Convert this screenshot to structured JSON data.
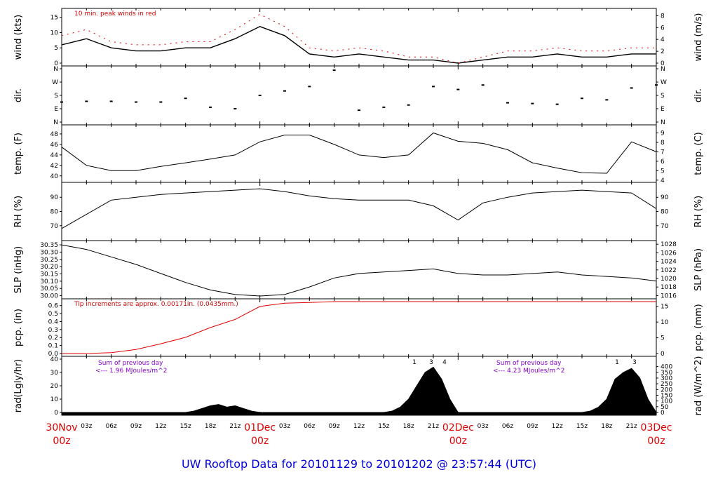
{
  "title": "UW Rooftop Data for 20101129  to  20101202 @ 23:57:44  (UTC)",
  "x_axis": {
    "hour_ticks": [
      "03z",
      "06z",
      "09z",
      "12z",
      "15z",
      "18z",
      "21z",
      "03z",
      "06z",
      "09z",
      "12z",
      "15z",
      "18z",
      "21z",
      "03z",
      "06z",
      "09z",
      "12z",
      "15z",
      "18z",
      "21z"
    ],
    "day_labels": [
      {
        "top": "30Nov",
        "bottom": "00z"
      },
      {
        "top": "01Dec",
        "bottom": "00z"
      },
      {
        "top": "02Dec",
        "bottom": "00z"
      },
      {
        "top": "03Dec",
        "bottom": "00z"
      }
    ]
  },
  "panels": {
    "wind": {
      "ylabel_left": "wind (kts)",
      "ylabel_right": "wind (m/s)",
      "left_ticks": [
        "0",
        "5",
        "10",
        "15"
      ],
      "right_ticks": [
        "0",
        "2",
        "4",
        "6",
        "8"
      ],
      "note": "10 min. peak winds in red"
    },
    "dir": {
      "ylabel_left": "dir.",
      "ylabel_right": "dir.",
      "ticks": [
        "N",
        "E",
        "S",
        "W",
        "N"
      ]
    },
    "temp": {
      "ylabel_left": "temp. (F)",
      "ylabel_right": "temp. (C)",
      "left_ticks": [
        "40",
        "42",
        "44",
        "46",
        "48"
      ],
      "right_ticks": [
        "4",
        "5",
        "6",
        "7",
        "8",
        "9"
      ]
    },
    "rh": {
      "ylabel_left": "RH (%)",
      "ylabel_right": "RH (%)",
      "left_ticks": [
        "70",
        "80",
        "90"
      ],
      "right_ticks": [
        "70",
        "80",
        "90"
      ]
    },
    "slp": {
      "ylabel_left": "SLP (inHg)",
      "ylabel_right": "SLP (hPa)",
      "left_ticks": [
        "30.00",
        "30.05",
        "30.10",
        "30.15",
        "30.20",
        "30.25",
        "30.30",
        "30.35"
      ],
      "right_ticks": [
        "1016",
        "1018",
        "1020",
        "1022",
        "1024",
        "1026",
        "1028"
      ]
    },
    "pcp": {
      "ylabel_left": "pcp. (in)",
      "ylabel_right": "pcp. (mm)",
      "left_ticks": [
        "0.0",
        "0.1",
        "0.2",
        "0.3",
        "0.4",
        "0.5",
        "0.6"
      ],
      "right_ticks": [
        "0",
        "5",
        "10",
        "15"
      ],
      "note": "Tip increments are approx. 0.00171in. (0.0435mm.)"
    },
    "rad": {
      "ylabel_left": "rad(Lgly/hr)",
      "ylabel_right": "rad (W/m^2)",
      "left_ticks": [
        "0",
        "10",
        "20",
        "30",
        "40"
      ],
      "right_ticks": [
        "0",
        "50",
        "100",
        "150",
        "200",
        "250",
        "300",
        "350",
        "400"
      ],
      "sum1": {
        "line1": "Sum of previous day",
        "line2": "<--- 1.96 MJoules/m^2"
      },
      "sum2": {
        "line1": "Sum of previous day",
        "line2": "<--- 4.23 MJoules/m^2"
      },
      "markers1": [
        "1",
        "3",
        "4"
      ],
      "markers2": [
        "1",
        "3"
      ]
    }
  },
  "chart_data": [
    {
      "type": "line",
      "title": "",
      "ylabel": "wind (kts)",
      "ylim": [
        0,
        17
      ],
      "series": [
        {
          "name": "",
          "color": "#000000",
          "x": [
            0,
            3,
            6,
            9,
            12,
            15,
            18,
            21,
            24,
            27,
            30,
            33,
            36,
            39,
            42,
            45,
            48,
            51,
            54,
            57,
            60,
            63,
            66,
            69,
            72
          ],
          "values": [
            6,
            8,
            5,
            4,
            4,
            5,
            5,
            8,
            12,
            9,
            3,
            2,
            3,
            2,
            1,
            1,
            0,
            1,
            2,
            2,
            3,
            2,
            2,
            3,
            3
          ]
        },
        {
          "name": "10 min. peak winds",
          "color": "#dd0000",
          "x": [
            0,
            3,
            6,
            9,
            12,
            15,
            18,
            21,
            24,
            27,
            30,
            33,
            36,
            39,
            42,
            45,
            48,
            51,
            54,
            57,
            60,
            63,
            66,
            69,
            72
          ],
          "values": [
            9,
            11,
            7,
            6,
            6,
            7,
            7,
            11,
            16,
            12,
            5,
            4,
            5,
            4,
            2,
            2,
            0,
            2,
            4,
            4,
            5,
            4,
            4,
            5,
            5
          ]
        }
      ]
    },
    {
      "type": "scatter",
      "title": "",
      "ylabel": "dir.",
      "ylim": [
        0,
        360
      ],
      "series": [
        {
          "name": "",
          "x": [
            0,
            3,
            6,
            9,
            12,
            15,
            18,
            21,
            24,
            27,
            30,
            33,
            36,
            39,
            42,
            45,
            48,
            51,
            54,
            57,
            60,
            63,
            66,
            69,
            72
          ],
          "values": [
            135,
            140,
            140,
            135,
            135,
            160,
            100,
            90,
            180,
            210,
            240,
            350,
            80,
            100,
            115,
            240,
            220,
            250,
            130,
            125,
            120,
            160,
            150,
            230,
            250
          ]
        }
      ]
    },
    {
      "type": "line",
      "title": "",
      "ylabel": "temp. (F)",
      "ylim": [
        39.3,
        49.2
      ],
      "series": [
        {
          "name": "",
          "x": [
            0,
            3,
            6,
            9,
            12,
            15,
            18,
            21,
            24,
            27,
            30,
            33,
            36,
            39,
            42,
            45,
            48,
            51,
            54,
            57,
            60,
            63,
            66,
            69,
            72
          ],
          "values": [
            45.5,
            42,
            41,
            41,
            41.8,
            42.5,
            43.2,
            44,
            46.5,
            47.8,
            47.8,
            46,
            44,
            43.5,
            44,
            48.2,
            46.6,
            46.2,
            45,
            42.5,
            41.5,
            40.6,
            40.5,
            46.5,
            44.6
          ]
        }
      ]
    },
    {
      "type": "line",
      "title": "",
      "ylabel": "RH (%)",
      "ylim": [
        61.5,
        98.5
      ],
      "series": [
        {
          "name": "",
          "x": [
            0,
            3,
            6,
            9,
            12,
            15,
            18,
            21,
            24,
            27,
            30,
            33,
            36,
            39,
            42,
            45,
            48,
            51,
            54,
            57,
            60,
            63,
            66,
            69,
            72
          ],
          "values": [
            68,
            78,
            88,
            90,
            92,
            93,
            94,
            95,
            96,
            94,
            91,
            89,
            88,
            88,
            88,
            84,
            74,
            86,
            90,
            93,
            94,
            95,
            94,
            93,
            82
          ]
        }
      ]
    },
    {
      "type": "line",
      "title": "",
      "ylabel": "SLP (inHg)",
      "ylim": [
        30.0,
        30.35
      ],
      "series": [
        {
          "name": "",
          "x": [
            0,
            3,
            6,
            9,
            12,
            15,
            18,
            21,
            24,
            27,
            30,
            33,
            36,
            39,
            42,
            45,
            48,
            51,
            54,
            57,
            60,
            63,
            66,
            69,
            72
          ],
          "values": [
            30.34,
            30.31,
            30.26,
            30.21,
            30.15,
            30.09,
            30.04,
            30.01,
            30.0,
            30.01,
            30.06,
            30.12,
            30.15,
            30.16,
            30.17,
            30.18,
            30.15,
            30.14,
            30.14,
            30.15,
            30.16,
            30.14,
            30.13,
            30.12,
            30.1
          ]
        }
      ]
    },
    {
      "type": "line",
      "title": "",
      "ylabel": "pcp. (in)",
      "ylim": [
        0,
        0.64
      ],
      "series": [
        {
          "name": "",
          "x": [
            0,
            3,
            6,
            9,
            12,
            15,
            18,
            21,
            24,
            27,
            30,
            33,
            36,
            39,
            42,
            45,
            48,
            51,
            54,
            57,
            60,
            63,
            66,
            69,
            72
          ],
          "values": [
            0,
            0,
            0.01,
            0.05,
            0.12,
            0.2,
            0.32,
            0.42,
            0.58,
            0.62,
            0.63,
            0.64,
            0.64,
            0.64,
            0.64,
            0.64,
            0.64,
            0.64,
            0.64,
            0.64,
            0.64,
            0.64,
            0.64,
            0.64,
            0.64
          ]
        }
      ]
    },
    {
      "type": "area",
      "title": "",
      "ylabel": "rad(Lgly/hr)",
      "ylim": [
        0,
        40
      ],
      "series": [
        {
          "name": "",
          "x": [
            0,
            3,
            6,
            9,
            12,
            15,
            16,
            17,
            18,
            19,
            20,
            21,
            22,
            23,
            24,
            30,
            36,
            39,
            40,
            41,
            42,
            43,
            44,
            45,
            46,
            47,
            48,
            54,
            60,
            63,
            64,
            65,
            66,
            67,
            68,
            69,
            70,
            71,
            72
          ],
          "values": [
            0,
            0,
            0,
            0,
            0,
            0,
            1,
            3,
            5,
            6,
            4,
            5,
            3,
            1,
            0,
            0,
            0,
            0,
            1,
            4,
            10,
            20,
            30,
            34,
            25,
            10,
            0,
            0,
            0,
            0,
            1,
            4,
            10,
            25,
            30,
            33,
            26,
            10,
            0
          ]
        }
      ]
    }
  ]
}
